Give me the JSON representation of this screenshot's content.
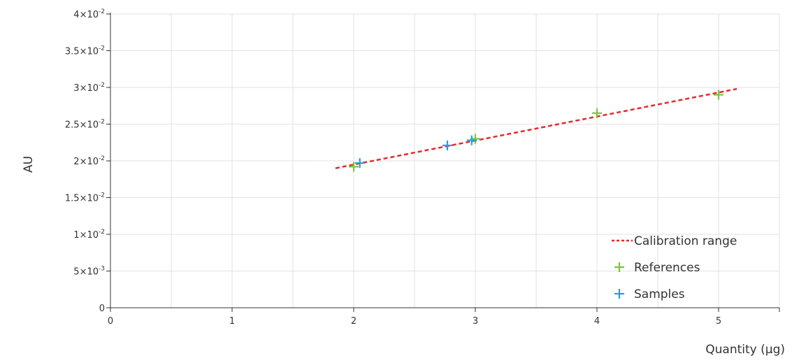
{
  "chart_data": {
    "type": "scatter",
    "xlabel": "Quantity (µg)",
    "ylabel": "AU",
    "xlim": [
      0,
      5.5
    ],
    "ylim": [
      0,
      0.04
    ],
    "x_ticks": [
      {
        "value": 0,
        "label": "0"
      },
      {
        "value": 1,
        "label": "1"
      },
      {
        "value": 2,
        "label": "2"
      },
      {
        "value": 3,
        "label": "3"
      },
      {
        "value": 4,
        "label": "4"
      },
      {
        "value": 5,
        "label": "5"
      }
    ],
    "y_ticks": [
      {
        "value": 0,
        "mant": "0",
        "exp": ""
      },
      {
        "value": 0.005,
        "mant": "5×10",
        "exp": "-3"
      },
      {
        "value": 0.01,
        "mant": "1×10",
        "exp": "-2"
      },
      {
        "value": 0.015,
        "mant": "1.5×10",
        "exp": "-2"
      },
      {
        "value": 0.02,
        "mant": "2×10",
        "exp": "-2"
      },
      {
        "value": 0.025,
        "mant": "2.5×10",
        "exp": "-2"
      },
      {
        "value": 0.03,
        "mant": "3×10",
        "exp": "-2"
      },
      {
        "value": 0.035,
        "mant": "3.5×10",
        "exp": "-2"
      },
      {
        "value": 0.04,
        "mant": "4×10",
        "exp": "-2"
      }
    ],
    "x_grid_step": 0.5,
    "y_grid_step": 0.005,
    "grid": true,
    "legend_position": "bottom-right",
    "series": [
      {
        "name": "Calibration range",
        "kind": "line",
        "style": "dashed",
        "color": "#e8292a",
        "points": [
          [
            1.85,
            0.019
          ],
          [
            5.15,
            0.0298
          ]
        ]
      },
      {
        "name": "References",
        "kind": "marker",
        "color": "#7dc242",
        "points": [
          [
            2.0,
            0.0192
          ],
          [
            3.0,
            0.023
          ],
          [
            4.0,
            0.0265
          ],
          [
            5.0,
            0.029
          ]
        ]
      },
      {
        "name": "Samples",
        "kind": "marker",
        "color": "#2b9be0",
        "points": [
          [
            2.05,
            0.0197
          ],
          [
            2.77,
            0.0221
          ],
          [
            2.97,
            0.0228
          ]
        ]
      }
    ]
  }
}
